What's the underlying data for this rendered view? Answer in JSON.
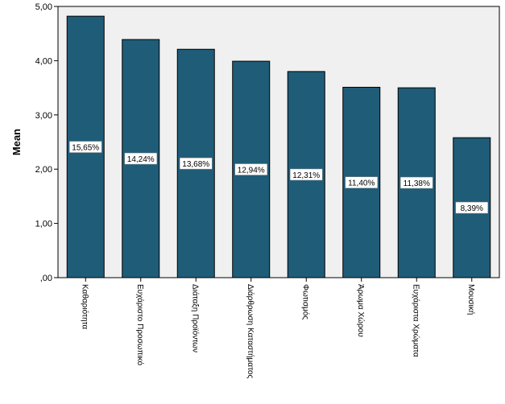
{
  "chart_data": {
    "type": "bar",
    "title": "",
    "xlabel": "",
    "ylabel": "Mean",
    "ylim": [
      0,
      5
    ],
    "yticks": [
      ",00",
      "1,00",
      "2,00",
      "3,00",
      "4,00",
      "5,00"
    ],
    "grid": false,
    "categories": [
      "Καθαριότητα",
      "Ευχάριστο Προσωπικό",
      "Διάταξη Προϊόντων",
      "Διάρθρωση Καταστήματος",
      "Φωτισμός",
      "Άρωμα Χώρου",
      "Ευχάριστα Χρώματα",
      "Μουσική"
    ],
    "values": [
      4.82,
      4.39,
      4.21,
      3.99,
      3.8,
      3.51,
      3.5,
      2.58
    ],
    "data_labels": [
      "15,65%",
      "14,24%",
      "13,68%",
      "12,94%",
      "12,31%",
      "11,40%",
      "11,38%",
      "8,39%"
    ],
    "colors": {
      "bar": "#1f5c78",
      "plot_bg": "#f0f0f0"
    }
  }
}
